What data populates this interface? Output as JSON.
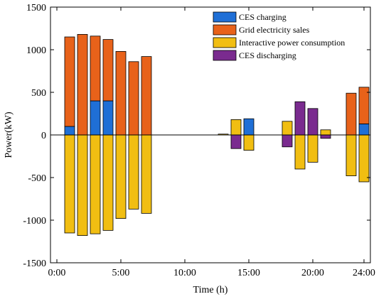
{
  "chart_data": {
    "type": "bar",
    "title": "",
    "xlabel": "Time (h)",
    "ylabel": "Power(kW)",
    "ylim": [
      -1500,
      1500
    ],
    "yticks": [
      -1500,
      -1000,
      -500,
      0,
      500,
      1000,
      1500
    ],
    "yticks_labels": [
      "-1500",
      "-1000",
      "-500",
      "0",
      "500",
      "1000",
      "1500"
    ],
    "xlim": [
      -0.5,
      24.5
    ],
    "xticks": [
      0,
      5,
      10,
      15,
      20,
      24
    ],
    "xtick_labels": [
      "0:00",
      "5:00",
      "10:00",
      "15:00",
      "20:00",
      "24:00"
    ],
    "grid": false,
    "legend_position": "top-right",
    "stacking": "CES charging and Grid electricity sales stack upward from 0; Interactive power consumption and CES discharging overlap from 0",
    "hours": [
      1,
      2,
      3,
      4,
      5,
      6,
      7,
      8,
      9,
      10,
      11,
      12,
      13,
      14,
      15,
      16,
      17,
      18,
      19,
      20,
      21,
      22,
      23,
      24
    ],
    "series": [
      {
        "name": "CES charging",
        "color": "#1f6fd6",
        "values": [
          100,
          0,
          400,
          400,
          0,
          0,
          0,
          0,
          0,
          0,
          0,
          0,
          0,
          0,
          190,
          0,
          0,
          0,
          0,
          0,
          0,
          0,
          0,
          130
        ]
      },
      {
        "name": "Grid electricity sales",
        "color": "#e8621a",
        "values": [
          1050,
          1180,
          760,
          720,
          980,
          860,
          920,
          0,
          0,
          0,
          0,
          0,
          0,
          0,
          0,
          0,
          0,
          0,
          0,
          0,
          0,
          0,
          490,
          430
        ]
      },
      {
        "name": "Interactive power consumption",
        "color": "#f1be12",
        "values": [
          -1150,
          -1180,
          -1160,
          -1120,
          -980,
          -870,
          -920,
          0,
          0,
          0,
          0,
          0,
          10,
          180,
          -180,
          0,
          0,
          160,
          -400,
          -320,
          60,
          0,
          -480,
          -550
        ]
      },
      {
        "name": "CES discharging",
        "color": "#7a2b8f",
        "values": [
          0,
          0,
          0,
          0,
          0,
          0,
          0,
          0,
          0,
          0,
          0,
          0,
          0,
          -160,
          0,
          0,
          0,
          -140,
          390,
          310,
          -40,
          0,
          0,
          0
        ]
      }
    ]
  }
}
